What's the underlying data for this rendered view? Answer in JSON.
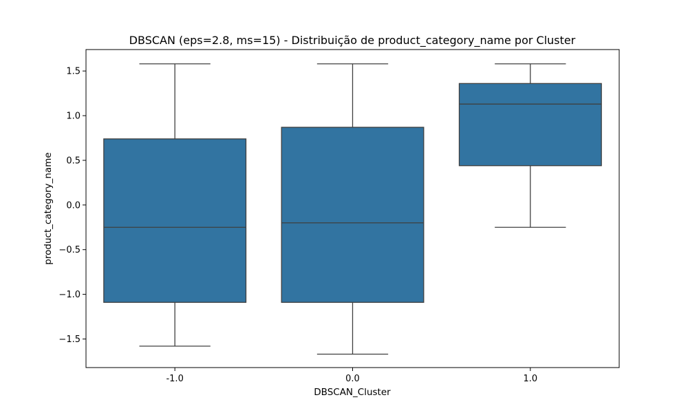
{
  "chart_data": {
    "type": "box",
    "title": "DBSCAN (eps=2.8, ms=15)  - Distribuição de product_category_name por Cluster",
    "xlabel": "DBSCAN_Cluster",
    "ylabel": "product_category_name",
    "categories": [
      "-1.0",
      "0.0",
      "1.0"
    ],
    "ylim": [
      -1.82,
      1.74
    ],
    "yticks": [
      -1.5,
      -1.0,
      -0.5,
      0.0,
      0.5,
      1.0,
      1.5
    ],
    "ytick_labels": [
      "−1.5",
      "−1.0",
      "−0.5",
      "0.0",
      "0.5",
      "1.0",
      "1.5"
    ],
    "grid": false,
    "box_color": "#3274a1",
    "line_color": "#3f3f3f",
    "boxes": [
      {
        "category": "-1.0",
        "whisker_low": -1.58,
        "q1": -1.09,
        "median": -0.25,
        "q3": 0.74,
        "whisker_high": 1.58
      },
      {
        "category": "0.0",
        "whisker_low": -1.67,
        "q1": -1.09,
        "median": -0.2,
        "q3": 0.87,
        "whisker_high": 1.58
      },
      {
        "category": "1.0",
        "whisker_low": -0.25,
        "q1": 0.44,
        "median": 1.13,
        "q3": 1.36,
        "whisker_high": 1.58
      }
    ]
  }
}
